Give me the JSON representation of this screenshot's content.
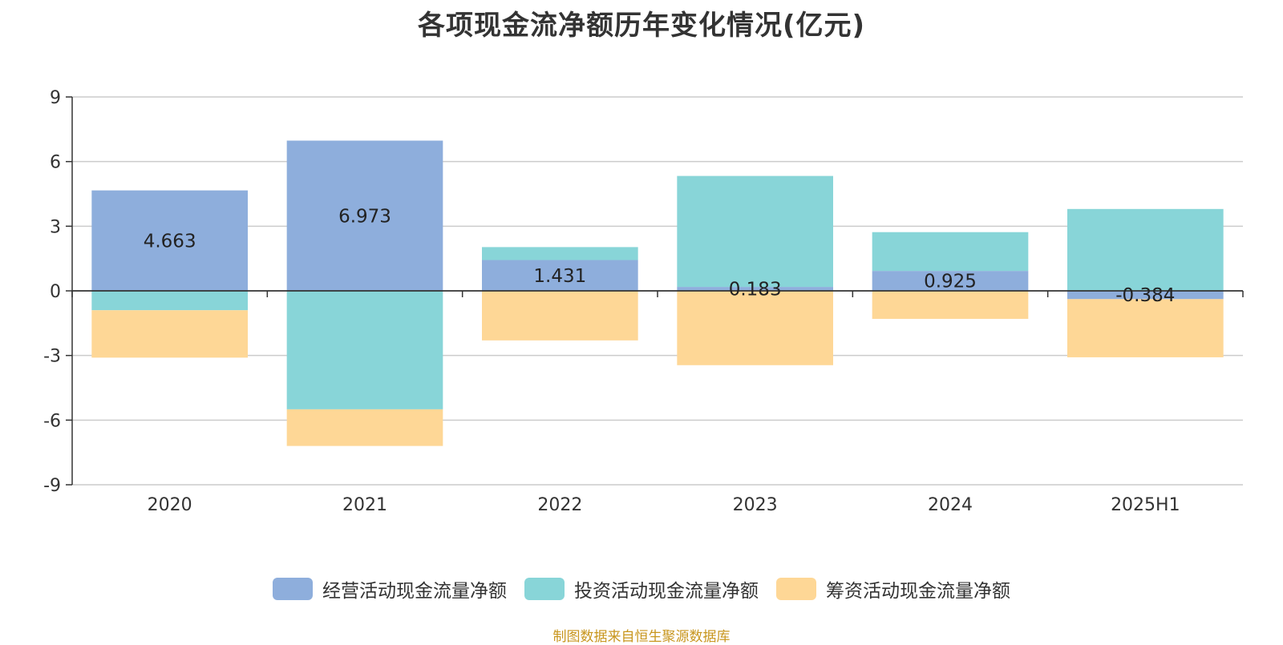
{
  "chart_data": {
    "type": "bar",
    "stacked": true,
    "title": "各项现金流净额历年变化情况(亿元)",
    "categories": [
      "2020",
      "2021",
      "2022",
      "2023",
      "2024",
      "2025H1"
    ],
    "series": [
      {
        "name": "经营活动现金流量净额",
        "color": "#8eaedc",
        "values": [
          4.663,
          6.973,
          1.431,
          0.183,
          0.925,
          -0.384
        ],
        "labels": [
          "4.663",
          "6.973",
          "1.431",
          "0.183",
          "0.925",
          "-0.384"
        ]
      },
      {
        "name": "投资活动现金流量净额",
        "color": "#88d5d8",
        "values": [
          -0.9,
          -5.5,
          0.6,
          5.15,
          1.8,
          3.8
        ]
      },
      {
        "name": "筹资活动现金流量净额",
        "color": "#fed796",
        "values": [
          -2.2,
          -1.7,
          -2.3,
          -3.45,
          -1.3,
          -2.7
        ]
      }
    ],
    "ylim": [
      -9,
      9
    ],
    "yticks": [
      9,
      6,
      3,
      0,
      -3,
      -6,
      -9
    ],
    "grid": true,
    "legend_position": "bottom",
    "source": "制图数据来自恒生聚源数据库"
  }
}
